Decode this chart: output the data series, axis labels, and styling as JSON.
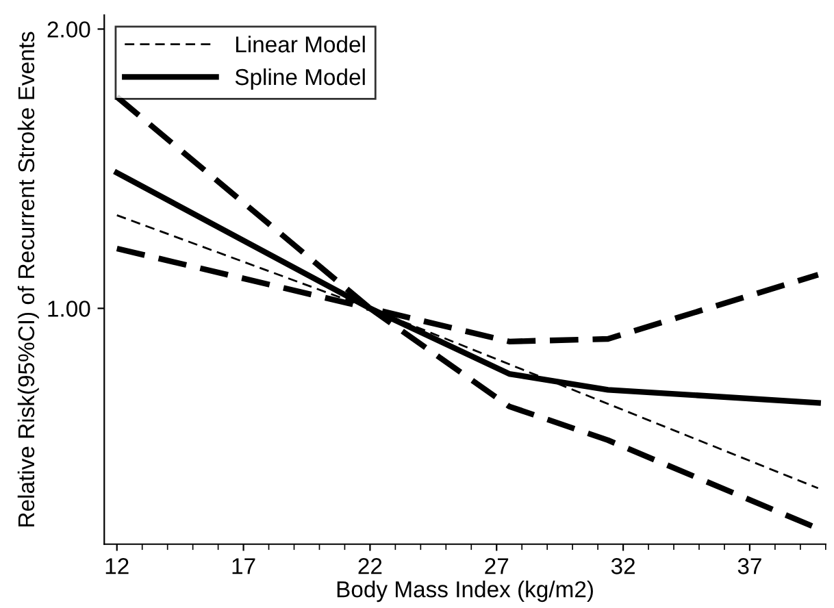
{
  "chart_data": {
    "type": "line",
    "xlabel": "Body Mass Index (kg/m2)",
    "ylabel": "Relative Risk(95%CI) of Recurrent Stroke Events",
    "log": "y",
    "xlim": [
      11.5,
      40
    ],
    "xticks": [
      12,
      17,
      22,
      27,
      32,
      37
    ],
    "ylim": [
      0.557,
      2.07
    ],
    "yticks": [
      {
        "value": 1,
        "label": "1.00"
      },
      {
        "value": 2,
        "label": "2.00"
      }
    ],
    "grid": false,
    "legend": "top left",
    "marker": "none",
    "series": [
      {
        "name": "Linear Model",
        "color": "#000000",
        "line_style": "dashed",
        "x": [
          12,
          22,
          39.7
        ],
        "values": [
          1.26,
          1.0,
          0.64
        ]
      },
      {
        "name": "Spline Model",
        "color": "#000000",
        "line_style": "solid",
        "x": [
          12,
          22,
          27.5,
          31.4,
          39.7
        ],
        "values": [
          1.4,
          1.0,
          0.85,
          0.817,
          0.791
        ]
      },
      {
        "color": "#000000",
        "line_style": "dashed",
        "x": [
          12,
          22,
          27.5,
          31.4,
          39.7
        ],
        "values": [
          1.69,
          1.0,
          0.921,
          0.927,
          1.087
        ]
      },
      {
        "color": "#000000",
        "line_style": "dashed",
        "x": [
          12,
          22,
          27.5,
          31.4,
          39.7
        ],
        "values": [
          1.16,
          1.0,
          0.784,
          0.721,
          0.579
        ]
      }
    ]
  }
}
